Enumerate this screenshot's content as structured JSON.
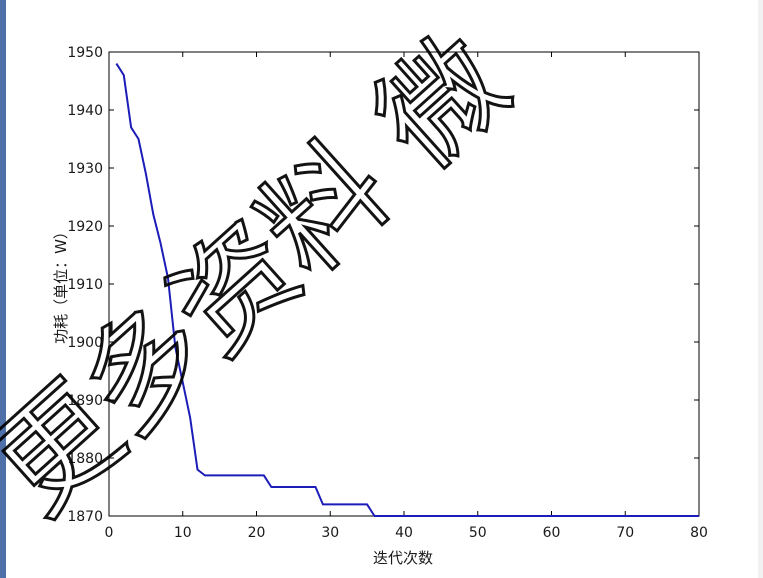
{
  "chart_data": {
    "type": "line",
    "title": "",
    "xlabel": "迭代次数",
    "ylabel": "功耗（单位：W）",
    "xlim": [
      0,
      80
    ],
    "ylim": [
      1870,
      1950
    ],
    "xticks": [
      0,
      10,
      20,
      30,
      40,
      50,
      60,
      70,
      80
    ],
    "yticks": [
      1870,
      1880,
      1890,
      1900,
      1910,
      1920,
      1930,
      1940,
      1950
    ],
    "grid": false,
    "series": [
      {
        "color": "#1c1cb8",
        "x": [
          1,
          2,
          3,
          4,
          5,
          6,
          7,
          8,
          9,
          10,
          11,
          12,
          13,
          14,
          15,
          16,
          17,
          18,
          19,
          20,
          21,
          22,
          23,
          24,
          25,
          26,
          27,
          28,
          29,
          30,
          31,
          32,
          33,
          34,
          35,
          36,
          37,
          40,
          50,
          60,
          70,
          80
        ],
        "values": [
          1948,
          1946,
          1937,
          1935,
          1929,
          1922,
          1917,
          1911,
          1899,
          1893,
          1887,
          1878,
          1877,
          1877,
          1877,
          1877,
          1877,
          1877,
          1877,
          1877,
          1877,
          1875,
          1875,
          1875,
          1875,
          1875,
          1875,
          1875,
          1872,
          1872,
          1872,
          1872,
          1872,
          1872,
          1872,
          1870,
          1870,
          1870,
          1870,
          1870,
          1870,
          1870
        ]
      }
    ],
    "watermark": "更多资料 微"
  }
}
